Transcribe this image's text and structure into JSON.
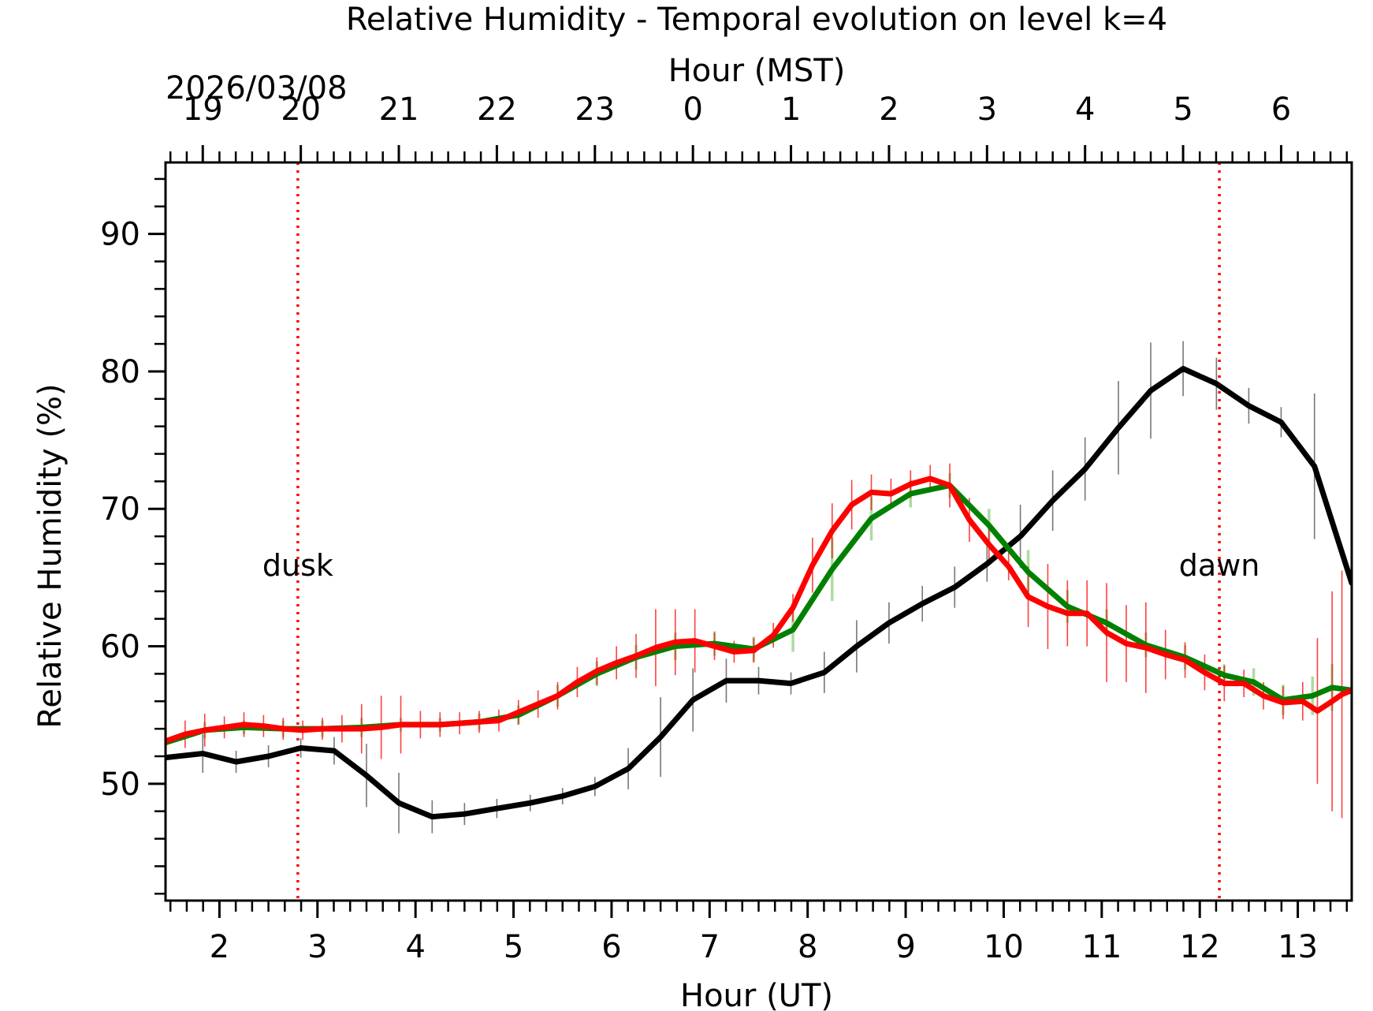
{
  "chart_data": {
    "type": "line",
    "title": "Relative Humidity - Temporal evolution on level k=4",
    "xlabel": "Hour (UT)",
    "ylabel": "Relative Humidity (%)",
    "top_xlabel": "Hour (MST)",
    "date_label": "2026/03/08",
    "xlim": [
      1.45,
      13.55
    ],
    "ylim": [
      41.5,
      95.2
    ],
    "x_ticks": [
      2,
      3,
      4,
      5,
      6,
      7,
      8,
      9,
      10,
      11,
      12,
      13
    ],
    "x_tick_labels": [
      "2",
      "3",
      "4",
      "5",
      "6",
      "7",
      "8",
      "9",
      "10",
      "11",
      "12",
      "13"
    ],
    "top_ticks": [
      1.83,
      2.83,
      3.83,
      4.83,
      5.83,
      6.83,
      7.83,
      8.83,
      9.83,
      10.83,
      11.83,
      12.83
    ],
    "top_tick_labels": [
      "19",
      "20",
      "21",
      "22",
      "23",
      "0",
      "1",
      "2",
      "3",
      "4",
      "5",
      "6"
    ],
    "y_ticks": [
      50,
      60,
      70,
      80,
      90
    ],
    "y_tick_labels": [
      "50",
      "60",
      "70",
      "80",
      "90"
    ],
    "grid": false,
    "vlines": [
      {
        "x": 2.8,
        "label": "dusk",
        "color": "#ff0000"
      },
      {
        "x": 12.2,
        "label": "dawn",
        "color": "#ff0000"
      }
    ],
    "series": [
      {
        "name": "black",
        "color": "#000000",
        "x": [
          1.45,
          1.83,
          2.17,
          2.5,
          2.83,
          3.17,
          3.5,
          3.83,
          4.17,
          4.5,
          4.83,
          5.17,
          5.5,
          5.83,
          6.17,
          6.5,
          6.83,
          7.17,
          7.5,
          7.83,
          8.17,
          8.5,
          8.83,
          9.17,
          9.5,
          9.83,
          10.17,
          10.5,
          10.83,
          11.17,
          11.5,
          11.83,
          12.17,
          12.5,
          12.83,
          13.17,
          13.55
        ],
        "y": [
          51.9,
          52.2,
          51.6,
          52.0,
          52.6,
          52.4,
          50.6,
          48.6,
          47.6,
          47.8,
          48.2,
          48.6,
          49.1,
          49.8,
          51.1,
          53.4,
          56.1,
          57.5,
          57.5,
          57.3,
          58.1,
          60.0,
          61.7,
          63.1,
          64.3,
          66.0,
          68.0,
          70.6,
          72.9,
          75.9,
          78.6,
          80.2,
          79.1,
          77.5,
          76.3,
          73.1,
          64.6
        ],
        "errors": [
          1.3,
          1.4,
          0.8,
          0.8,
          0.7,
          1.0,
          2.3,
          2.2,
          1.2,
          0.8,
          0.7,
          0.6,
          0.6,
          0.7,
          1.5,
          2.9,
          2.3,
          1.6,
          1.0,
          0.8,
          1.5,
          1.9,
          1.5,
          1.3,
          1.5,
          1.3,
          2.3,
          2.2,
          2.3,
          3.4,
          3.5,
          2.0,
          1.9,
          1.3,
          1.1,
          5.3,
          11.2
        ]
      },
      {
        "name": "green",
        "color": "#008000",
        "x": [
          1.45,
          1.85,
          2.25,
          2.65,
          3.05,
          3.45,
          3.85,
          4.25,
          4.65,
          5.05,
          5.45,
          5.85,
          6.25,
          6.65,
          7.05,
          7.45,
          7.85,
          8.25,
          8.65,
          9.05,
          9.45,
          9.85,
          10.25,
          10.65,
          11.05,
          11.45,
          11.85,
          12.25,
          12.55,
          12.85,
          13.15,
          13.35,
          13.55
        ],
        "y": [
          53.0,
          53.9,
          54.1,
          54.0,
          54.0,
          54.1,
          54.3,
          54.3,
          54.5,
          55.0,
          56.4,
          58.0,
          59.2,
          60.0,
          60.2,
          59.8,
          61.2,
          65.6,
          69.3,
          71.1,
          71.7,
          68.8,
          65.4,
          62.9,
          61.7,
          60.1,
          59.2,
          57.9,
          57.4,
          56.1,
          56.4,
          57.0,
          56.8
        ],
        "errors": [
          1.0,
          0.6,
          0.5,
          0.6,
          0.6,
          0.7,
          0.5,
          0.5,
          0.6,
          0.7,
          0.8,
          0.9,
          0.9,
          1.0,
          0.9,
          0.9,
          1.6,
          2.3,
          1.6,
          1.0,
          0.9,
          1.2,
          1.6,
          1.2,
          1.0,
          0.9,
          0.9,
          0.8,
          1.0,
          1.1,
          1.4,
          1.7,
          2.0
        ]
      },
      {
        "name": "red",
        "color": "#ff0000",
        "x": [
          1.45,
          1.65,
          1.85,
          2.05,
          2.25,
          2.45,
          2.65,
          2.85,
          3.05,
          3.25,
          3.45,
          3.65,
          3.85,
          4.05,
          4.25,
          4.45,
          4.65,
          4.85,
          5.05,
          5.25,
          5.45,
          5.65,
          5.85,
          6.05,
          6.25,
          6.45,
          6.65,
          6.85,
          7.05,
          7.25,
          7.45,
          7.65,
          7.85,
          8.05,
          8.25,
          8.45,
          8.65,
          8.85,
          9.05,
          9.25,
          9.45,
          9.65,
          9.85,
          10.05,
          10.25,
          10.45,
          10.65,
          10.85,
          11.05,
          11.25,
          11.45,
          11.65,
          11.85,
          12.05,
          12.25,
          12.45,
          12.65,
          12.85,
          13.05,
          13.2,
          13.35,
          13.45,
          13.55
        ],
        "y": [
          53.1,
          53.6,
          53.9,
          54.1,
          54.3,
          54.2,
          54.0,
          53.9,
          54.0,
          54.0,
          54.0,
          54.1,
          54.3,
          54.3,
          54.3,
          54.4,
          54.5,
          54.6,
          55.2,
          55.8,
          56.4,
          57.4,
          58.2,
          58.8,
          59.3,
          59.9,
          60.3,
          60.4,
          60.0,
          59.6,
          59.7,
          60.8,
          62.8,
          65.9,
          68.4,
          70.3,
          71.2,
          71.1,
          71.8,
          72.2,
          71.7,
          69.2,
          67.4,
          65.8,
          63.6,
          62.9,
          62.4,
          62.4,
          61.0,
          60.2,
          59.9,
          59.4,
          59.0,
          58.1,
          57.3,
          57.3,
          56.4,
          55.9,
          56.0,
          55.3,
          56.0,
          56.5,
          56.8
        ],
        "errors": [
          1.4,
          1.0,
          1.2,
          0.8,
          0.9,
          0.8,
          0.8,
          0.7,
          0.8,
          1.0,
          1.8,
          2.3,
          2.1,
          1.0,
          0.9,
          0.8,
          0.8,
          0.8,
          0.9,
          1.0,
          1.0,
          1.1,
          1.0,
          1.2,
          1.6,
          2.8,
          2.4,
          2.3,
          1.0,
          0.8,
          0.9,
          0.9,
          1.0,
          2.0,
          2.0,
          1.8,
          1.3,
          1.1,
          1.0,
          1.0,
          1.6,
          1.6,
          1.2,
          1.0,
          2.2,
          3.1,
          2.4,
          2.4,
          3.6,
          2.8,
          3.3,
          1.8,
          1.3,
          1.3,
          1.3,
          1.0,
          1.0,
          1.2,
          1.4,
          5.3,
          8.0,
          9.0,
          10.5
        ]
      }
    ]
  }
}
